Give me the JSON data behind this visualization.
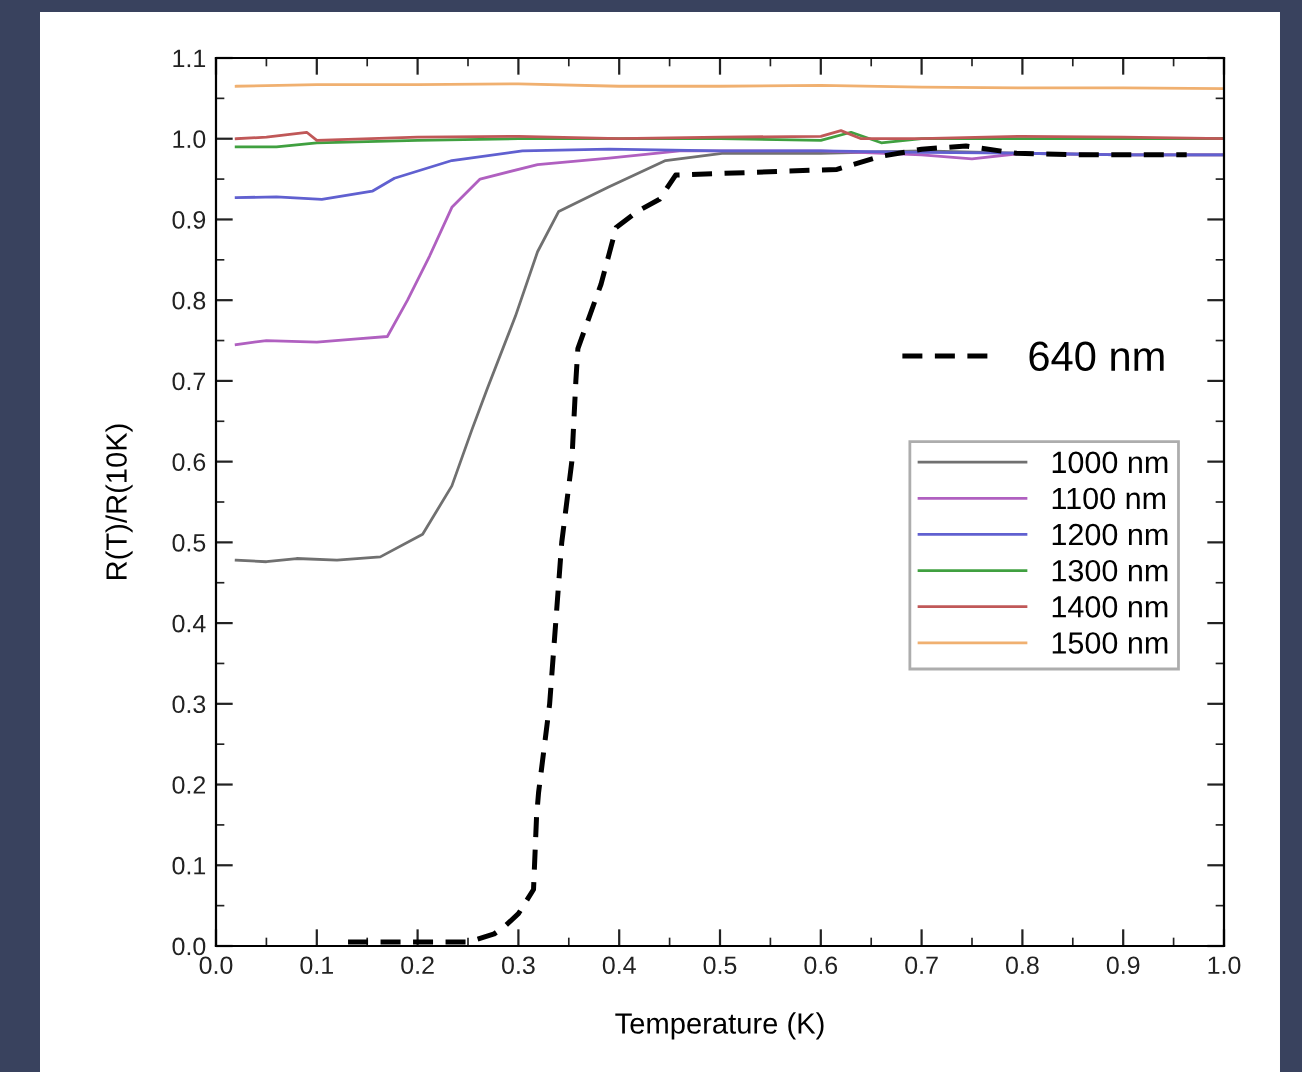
{
  "chart_data": {
    "type": "line",
    "xlabel": "Temperature (K)",
    "ylabel": "R(T)/R(10K)",
    "xlim": [
      0.0,
      1.0
    ],
    "ylim": [
      0.0,
      1.1
    ],
    "xticks": [
      {
        "value": 0.0,
        "label": "0.0"
      },
      0.1,
      0.2,
      0.3,
      0.4,
      0.5,
      0.6,
      0.7,
      0.8,
      0.9,
      {
        "value": 1.0,
        "label": "1.0"
      }
    ],
    "yticks": [
      {
        "value": 0.0,
        "label": "0.0"
      },
      0.1,
      0.2,
      0.3,
      0.4,
      0.5,
      0.6,
      0.7,
      0.8,
      0.9,
      {
        "value": 1.0,
        "label": "1.0"
      },
      1.1
    ],
    "grid": false,
    "legend": "right",
    "marker": "none",
    "series": [
      {
        "name": "640 nm",
        "color": "#000000",
        "line_style": "dashed",
        "x": [
          0.131,
          0.251,
          0.276,
          0.287,
          0.3,
          0.315,
          0.318,
          0.32,
          0.331,
          0.343,
          0.353,
          0.357,
          0.359,
          0.382,
          0.397,
          0.418,
          0.44,
          0.456,
          0.616,
          0.659,
          0.7,
          0.744,
          0.794,
          0.857,
          0.963
        ],
        "values": [
          0.005,
          0.005,
          0.015,
          0.025,
          0.04,
          0.07,
          0.16,
          0.19,
          0.3,
          0.5,
          0.6,
          0.7,
          0.74,
          0.82,
          0.89,
          0.91,
          0.925,
          0.955,
          0.962,
          0.978,
          0.987,
          0.991,
          0.982,
          0.98,
          0.98
        ]
      },
      {
        "name": "1000 nm",
        "color": "#707070",
        "line_style": "solid",
        "x": [
          0.02,
          0.05,
          0.08,
          0.12,
          0.163,
          0.205,
          0.234,
          0.254,
          0.269,
          0.297,
          0.319,
          0.34,
          0.389,
          0.446,
          0.502,
          0.6,
          0.7,
          0.8,
          0.9,
          1.0
        ],
        "values": [
          0.478,
          0.476,
          0.48,
          0.478,
          0.482,
          0.51,
          0.57,
          0.64,
          0.69,
          0.78,
          0.86,
          0.91,
          0.94,
          0.973,
          0.982,
          0.982,
          0.985,
          0.982,
          0.98,
          0.98
        ]
      },
      {
        "name": "1100 nm",
        "color": "#b060c0",
        "line_style": "solid",
        "x": [
          0.02,
          0.05,
          0.1,
          0.14,
          0.17,
          0.19,
          0.212,
          0.234,
          0.262,
          0.319,
          0.39,
          0.46,
          0.6,
          0.7,
          0.75,
          0.8,
          0.9,
          1.0
        ],
        "values": [
          0.745,
          0.75,
          0.748,
          0.752,
          0.755,
          0.8,
          0.855,
          0.915,
          0.95,
          0.968,
          0.976,
          0.985,
          0.985,
          0.98,
          0.975,
          0.982,
          0.98,
          0.98
        ]
      },
      {
        "name": "1200 nm",
        "color": "#6060d0",
        "line_style": "solid",
        "x": [
          0.02,
          0.06,
          0.105,
          0.155,
          0.177,
          0.234,
          0.304,
          0.39,
          0.5,
          0.6,
          0.7,
          0.8,
          0.9,
          1.0
        ],
        "values": [
          0.927,
          0.928,
          0.925,
          0.935,
          0.951,
          0.973,
          0.985,
          0.987,
          0.985,
          0.985,
          0.983,
          0.982,
          0.98,
          0.98
        ]
      },
      {
        "name": "1300 nm",
        "color": "#40a040",
        "line_style": "solid",
        "x": [
          0.02,
          0.06,
          0.1,
          0.2,
          0.3,
          0.4,
          0.5,
          0.6,
          0.63,
          0.66,
          0.7,
          0.8,
          0.9,
          1.0
        ],
        "values": [
          0.99,
          0.99,
          0.995,
          0.998,
          1.0,
          1.0,
          1.0,
          0.998,
          1.008,
          0.995,
          1.0,
          1.0,
          1.0,
          1.0
        ]
      },
      {
        "name": "1400 nm",
        "color": "#c05858",
        "line_style": "solid",
        "x": [
          0.02,
          0.05,
          0.09,
          0.1,
          0.2,
          0.3,
          0.4,
          0.5,
          0.6,
          0.62,
          0.64,
          0.7,
          0.8,
          0.9,
          1.0
        ],
        "values": [
          1.0,
          1.002,
          1.008,
          0.998,
          1.002,
          1.003,
          1.0,
          1.002,
          1.003,
          1.01,
          1.0,
          1.0,
          1.003,
          1.002,
          1.0
        ]
      },
      {
        "name": "1500 nm",
        "color": "#f0b070",
        "line_style": "solid",
        "x": [
          0.02,
          0.1,
          0.2,
          0.3,
          0.4,
          0.5,
          0.6,
          0.7,
          0.8,
          0.9,
          1.0
        ],
        "values": [
          1.065,
          1.067,
          1.067,
          1.068,
          1.065,
          1.065,
          1.066,
          1.064,
          1.063,
          1.063,
          1.062
        ]
      }
    ]
  }
}
